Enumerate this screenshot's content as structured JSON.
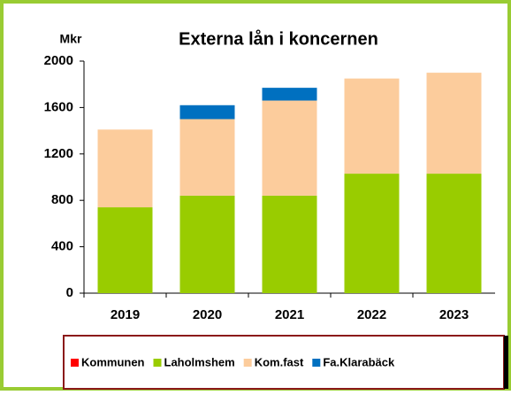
{
  "chart_data": {
    "type": "stacked_bar",
    "title": "Externa lån i koncernen",
    "y_label": "Mkr",
    "categories": [
      "2019",
      "2020",
      "2021",
      "2022",
      "2023"
    ],
    "series": [
      {
        "name": "Kommunen",
        "color": "#ff0000",
        "values": [
          0,
          0,
          0,
          0,
          0
        ]
      },
      {
        "name": "Laholmshem",
        "color": "#99cc00",
        "values": [
          740,
          840,
          840,
          1030,
          1030
        ]
      },
      {
        "name": "Kom.fast",
        "color": "#fccc9c",
        "values": [
          670,
          660,
          820,
          820,
          870
        ]
      },
      {
        "name": "Fa.Klarabäck",
        "color": "#0070c0",
        "values": [
          0,
          120,
          110,
          0,
          0
        ]
      }
    ],
    "ylim": [
      0,
      2000
    ],
    "yticks": [
      0,
      400,
      800,
      1200,
      1600,
      2000
    ],
    "grid": false,
    "legend": "bottom"
  }
}
